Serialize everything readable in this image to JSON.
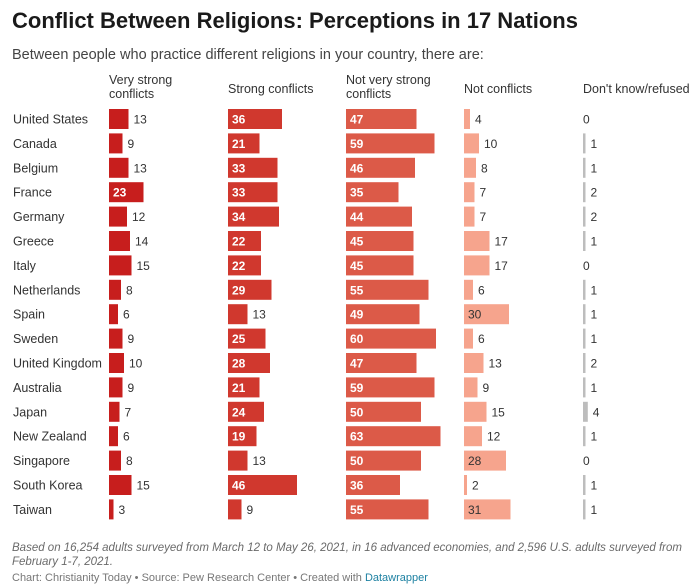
{
  "title": "Conflict Between Religions: Perceptions in 17 Nations",
  "subtitle": "Between people who practice different religions in your country, there are:",
  "note": "Based on 16,254 adults surveyed from March 12 to May 26, 2021, in 16 advanced economies, and 2,596 U.S. adults surveyed from February 1-7, 2021.",
  "footer": {
    "prefix": "Chart: Christianity Today • Source: Pew Research Center • Created with ",
    "link": "Datawrapper"
  },
  "chart_data": {
    "type": "bar",
    "categories": [
      "United States",
      "Canada",
      "Belgium",
      "France",
      "Germany",
      "Greece",
      "Italy",
      "Netherlands",
      "Spain",
      "Sweden",
      "United Kingdom",
      "Australia",
      "Japan",
      "New Zealand",
      "Singapore",
      "South Korea",
      "Taiwan"
    ],
    "series": [
      {
        "name": "Very strong conflicts",
        "color": "#c71e1d",
        "values": [
          13,
          9,
          13,
          23,
          12,
          14,
          15,
          8,
          6,
          9,
          10,
          9,
          7,
          6,
          8,
          15,
          3
        ]
      },
      {
        "name": "Strong conflicts",
        "color": "#d0382e",
        "values": [
          36,
          21,
          33,
          33,
          34,
          22,
          22,
          29,
          13,
          25,
          28,
          21,
          24,
          19,
          13,
          46,
          9
        ]
      },
      {
        "name": "Not very strong conflicts",
        "color": "#dc5a48",
        "values": [
          47,
          59,
          46,
          35,
          44,
          45,
          45,
          55,
          49,
          60,
          47,
          59,
          50,
          63,
          50,
          36,
          55
        ]
      },
      {
        "name": "Not conflicts",
        "color": "#f6a48d",
        "values": [
          4,
          10,
          8,
          7,
          7,
          17,
          17,
          6,
          30,
          6,
          13,
          9,
          15,
          12,
          28,
          2,
          31
        ]
      },
      {
        "name": "Don't know/refused",
        "color": "#bdbdbd",
        "values": [
          0,
          1,
          1,
          2,
          2,
          1,
          0,
          1,
          1,
          1,
          2,
          1,
          4,
          1,
          0,
          1,
          1
        ]
      }
    ]
  }
}
